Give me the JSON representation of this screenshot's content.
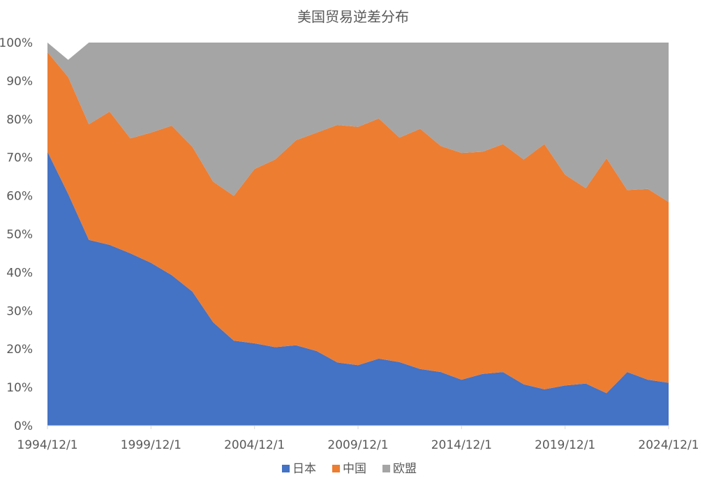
{
  "chart_data": {
    "type": "area",
    "stacked": "percent",
    "title": "美国贸易逆差分布",
    "x": [
      "1994/12/1",
      "1995/12/1",
      "1996/12/1",
      "1997/12/1",
      "1998/12/1",
      "1999/12/1",
      "2000/12/1",
      "2001/12/1",
      "2002/12/1",
      "2003/12/1",
      "2004/12/1",
      "2005/12/1",
      "2006/12/1",
      "2007/12/1",
      "2008/12/1",
      "2009/12/1",
      "2010/12/1",
      "2011/12/1",
      "2012/12/1",
      "2013/12/1",
      "2014/12/1",
      "2015/12/1",
      "2016/12/1",
      "2017/12/1",
      "2018/12/1",
      "2019/12/1",
      "2020/12/1",
      "2021/12/1",
      "2022/12/1",
      "2023/12/1",
      "2024/12/1"
    ],
    "x_tick_labels": [
      "1994/12/1",
      "1999/12/1",
      "2004/12/1",
      "2009/12/1",
      "2014/12/1",
      "2019/12/1",
      "2024/12/1"
    ],
    "series": [
      {
        "name": "日本",
        "color": "#4472C4",
        "values": [
          71.5,
          60.5,
          48.5,
          47.2,
          45.0,
          42.5,
          39.3,
          35.0,
          27.0,
          22.2,
          21.5,
          20.5,
          21.0,
          19.5,
          16.5,
          15.8,
          17.5,
          16.6,
          14.8,
          14.0,
          12.0,
          13.5,
          14.0,
          10.8,
          9.5,
          10.5,
          11.0,
          8.5,
          14.0,
          12.0,
          11.2
        ]
      },
      {
        "name": "中国",
        "color": "#ED7D31",
        "values": [
          26.0,
          30.5,
          30.2,
          34.8,
          30.0,
          34.0,
          39.0,
          37.8,
          36.7,
          37.8,
          45.5,
          49.0,
          53.5,
          57.0,
          62.0,
          62.2,
          62.7,
          58.6,
          62.7,
          59.0,
          59.2,
          58.0,
          59.5,
          58.7,
          64.0,
          55.0,
          51.0,
          61.3,
          47.5,
          49.8,
          47.2
        ]
      },
      {
        "name": "欧盟",
        "color": "#A5A5A5",
        "values": [
          2.5,
          4.5,
          21.3,
          18.0,
          25.0,
          23.5,
          21.7,
          27.2,
          36.3,
          40.0,
          33.0,
          30.5,
          25.5,
          23.5,
          21.5,
          22.0,
          19.8,
          24.8,
          22.5,
          27.0,
          28.8,
          28.5,
          26.5,
          30.5,
          26.5,
          34.5,
          38.0,
          30.2,
          38.5,
          38.2,
          41.6
        ]
      }
    ],
    "ylim": [
      0,
      100
    ],
    "y_tick_labels": [
      "0%",
      "10%",
      "20%",
      "30%",
      "40%",
      "50%",
      "60%",
      "70%",
      "80%",
      "90%",
      "100%"
    ],
    "legend_position": "bottom",
    "grid": false
  }
}
